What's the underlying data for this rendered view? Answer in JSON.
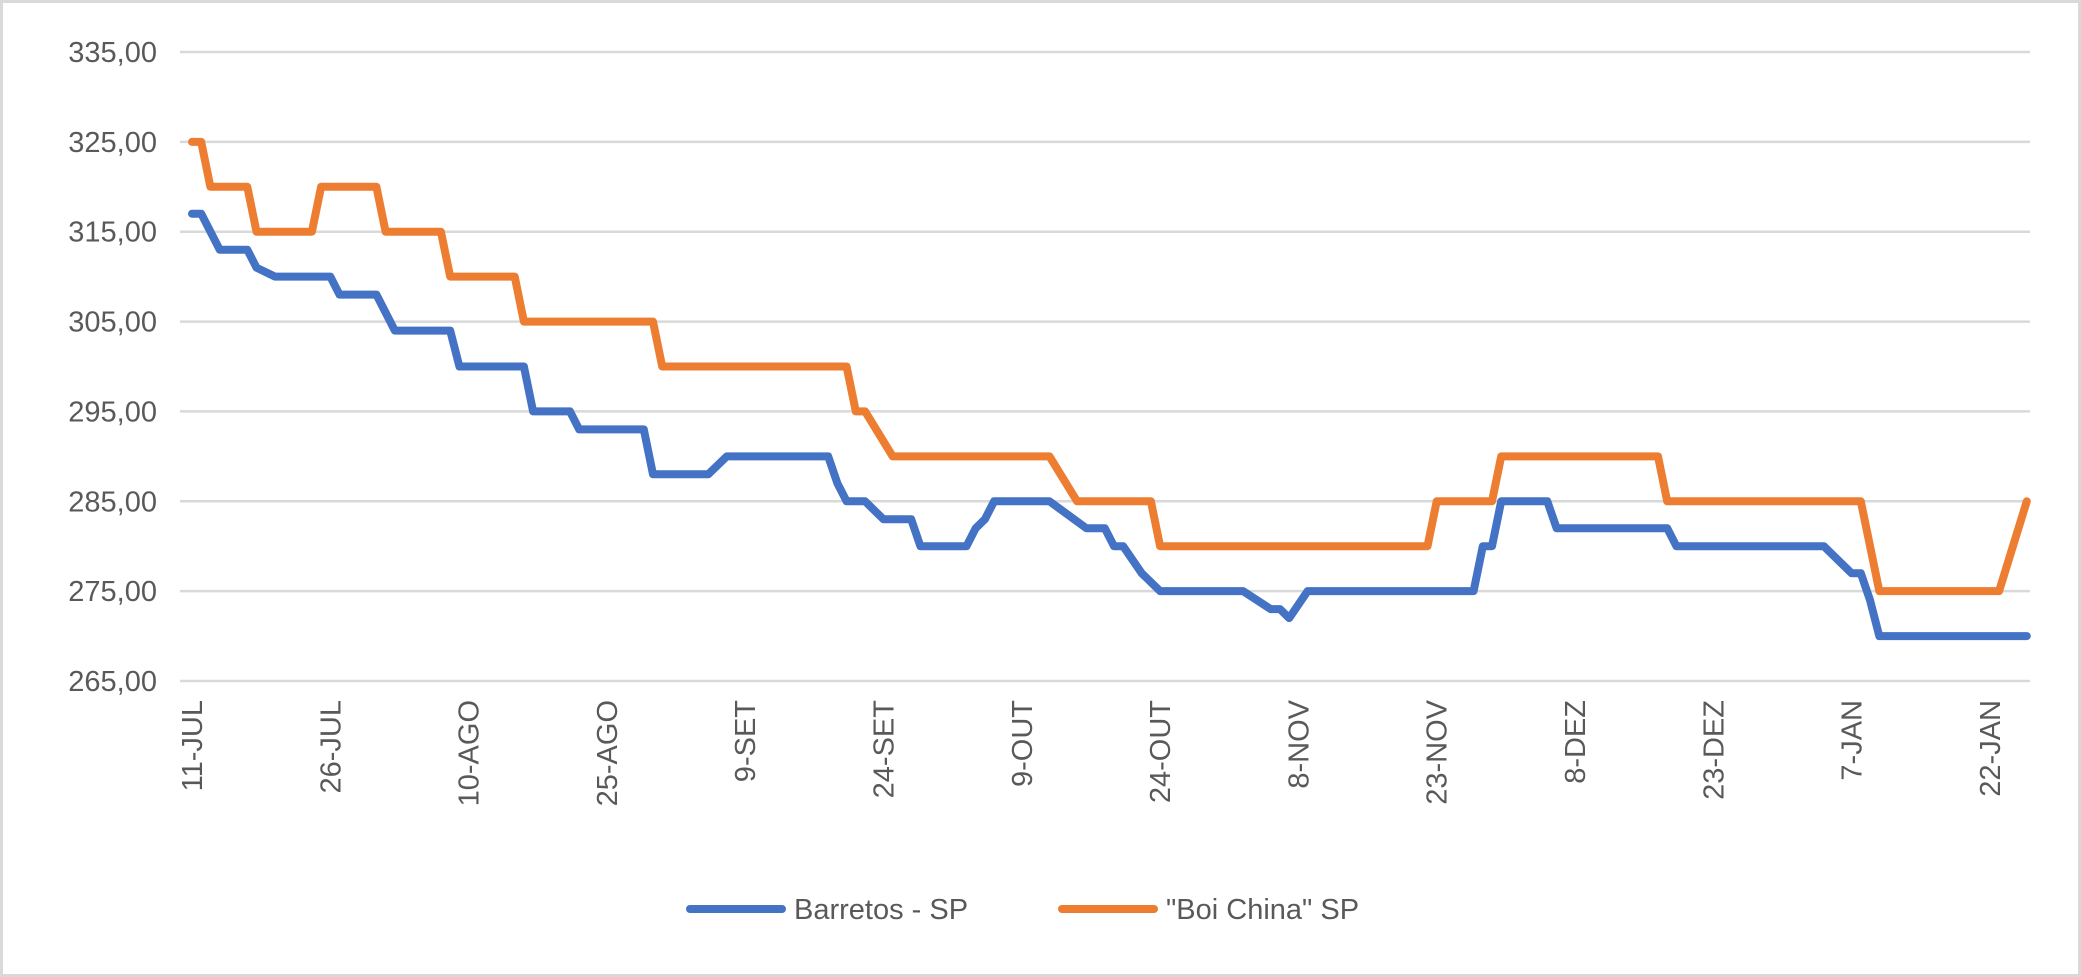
{
  "chart_data": {
    "type": "line",
    "title": "",
    "xlabel": "",
    "ylabel": "",
    "ylim": [
      265,
      335
    ],
    "y_ticks": [
      "265,00",
      "275,00",
      "285,00",
      "295,00",
      "305,00",
      "315,00",
      "325,00",
      "335,00"
    ],
    "x_ticks": [
      "11-JUL",
      "26-JUL",
      "10-AGO",
      "25-AGO",
      "9-SET",
      "24-SET",
      "9-OUT",
      "24-OUT",
      "8-NOV",
      "23-NOV",
      "8-DEZ",
      "23-DEZ",
      "7-JAN",
      "22-JAN"
    ],
    "x_range": [
      "11-JUL",
      "26-JAN"
    ],
    "grid": "horizontal",
    "legend_position": "bottom",
    "series": [
      {
        "name": "Barretos - SP",
        "color": "#4472C4",
        "points": [
          [
            "11-JUL",
            317
          ],
          [
            "12-JUL",
            317
          ],
          [
            "14-JUL",
            313
          ],
          [
            "17-JUL",
            313
          ],
          [
            "18-JUL",
            311
          ],
          [
            "20-JUL",
            310
          ],
          [
            "26-JUL",
            310
          ],
          [
            "27-JUL",
            308
          ],
          [
            "31-JUL",
            308
          ],
          [
            "2-AGO",
            304
          ],
          [
            "8-AGO",
            304
          ],
          [
            "9-AGO",
            300
          ],
          [
            "16-AGO",
            300
          ],
          [
            "17-AGO",
            295
          ],
          [
            "21-AGO",
            295
          ],
          [
            "22-AGO",
            293
          ],
          [
            "29-AGO",
            293
          ],
          [
            "30-AGO",
            288
          ],
          [
            "5-SET",
            288
          ],
          [
            "7-SET",
            290
          ],
          [
            "18-SET",
            290
          ],
          [
            "19-SET",
            287
          ],
          [
            "20-SET",
            285
          ],
          [
            "22-SET",
            285
          ],
          [
            "24-SET",
            283
          ],
          [
            "27-SET",
            283
          ],
          [
            "28-SET",
            280
          ],
          [
            "3-OUT",
            280
          ],
          [
            "4-OUT",
            282
          ],
          [
            "5-OUT",
            283
          ],
          [
            "6-OUT",
            285
          ],
          [
            "12-OUT",
            285
          ],
          [
            "16-OUT",
            282
          ],
          [
            "18-OUT",
            282
          ],
          [
            "19-OUT",
            280
          ],
          [
            "20-OUT",
            280
          ],
          [
            "22-OUT",
            277
          ],
          [
            "24-OUT",
            275
          ],
          [
            "2-NOV",
            275
          ],
          [
            "5-NOV",
            273
          ],
          [
            "6-NOV",
            273
          ],
          [
            "7-NOV",
            272
          ],
          [
            "9-NOV",
            275
          ],
          [
            "27-NOV",
            275
          ],
          [
            "28-NOV",
            280
          ],
          [
            "29-NOV",
            280
          ],
          [
            "30-NOV",
            285
          ],
          [
            "5-DEZ",
            285
          ],
          [
            "6-DEZ",
            282
          ],
          [
            "18-DEZ",
            282
          ],
          [
            "19-DEZ",
            280
          ],
          [
            "4-JAN",
            280
          ],
          [
            "7-JAN",
            277
          ],
          [
            "8-JAN",
            277
          ],
          [
            "9-JAN",
            274
          ],
          [
            "10-JAN",
            270
          ],
          [
            "26-JAN",
            270
          ]
        ]
      },
      {
        "name": "\"Boi China\" SP",
        "color": "#ED7D31",
        "points": [
          [
            "11-JUL",
            325
          ],
          [
            "12-JUL",
            325
          ],
          [
            "13-JUL",
            320
          ],
          [
            "17-JUL",
            320
          ],
          [
            "18-JUL",
            315
          ],
          [
            "24-JUL",
            315
          ],
          [
            "25-JUL",
            320
          ],
          [
            "31-JUL",
            320
          ],
          [
            "1-AGO",
            315
          ],
          [
            "7-AGO",
            315
          ],
          [
            "8-AGO",
            310
          ],
          [
            "15-AGO",
            310
          ],
          [
            "16-AGO",
            305
          ],
          [
            "30-AGO",
            305
          ],
          [
            "31-AGO",
            300
          ],
          [
            "20-SET",
            300
          ],
          [
            "21-SET",
            295
          ],
          [
            "22-SET",
            295
          ],
          [
            "25-SET",
            290
          ],
          [
            "12-OUT",
            290
          ],
          [
            "15-OUT",
            285
          ],
          [
            "23-OUT",
            285
          ],
          [
            "24-OUT",
            280
          ],
          [
            "22-NOV",
            280
          ],
          [
            "23-NOV",
            285
          ],
          [
            "29-NOV",
            285
          ],
          [
            "30-NOV",
            290
          ],
          [
            "17-DEZ",
            290
          ],
          [
            "18-DEZ",
            285
          ],
          [
            "8-JAN",
            285
          ],
          [
            "10-JAN",
            275
          ],
          [
            "23-JAN",
            275
          ],
          [
            "26-JAN",
            285
          ]
        ]
      }
    ]
  }
}
